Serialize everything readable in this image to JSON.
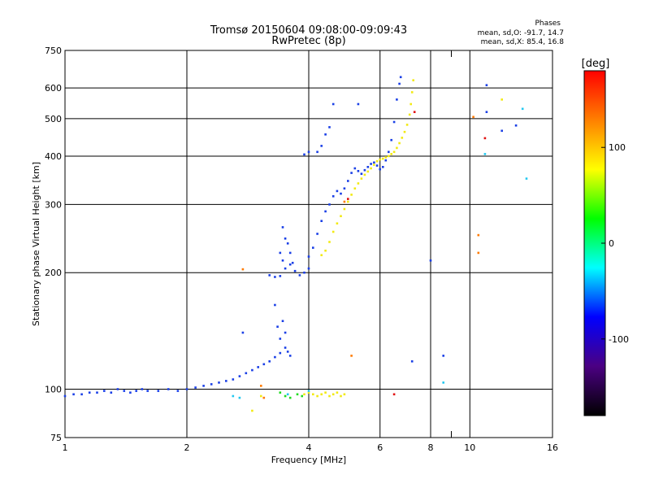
{
  "chart_data": {
    "type": "scatter",
    "title": "Tromsø 20150604 09:08:00-09:09:43",
    "subtitle": "RwPretec (8p)",
    "xlabel": "Frequency [MHz]",
    "ylabel": "Stationary phase Virtual Height [km]",
    "x_scale": "log",
    "y_scale": "log",
    "xlim": [
      1,
      16
    ],
    "ylim": [
      75,
      750
    ],
    "x_ticks": [
      1,
      2,
      4,
      6,
      8,
      10,
      16
    ],
    "x_tick_labels": [
      "1",
      "2",
      "4",
      "6",
      "8",
      "10",
      "16"
    ],
    "x_minor_ticks": [
      9
    ],
    "y_ticks": [
      75,
      100,
      200,
      300,
      400,
      500,
      600,
      750
    ],
    "y_tick_labels": [
      "75",
      "100",
      "200",
      "300",
      "400",
      "500",
      "600",
      "750"
    ],
    "grid": true,
    "legend": {
      "title": "Phases",
      "lines": [
        "mean, sd,O: -91.7, 14.7",
        "mean, sd,X: 85.4, 16.8"
      ],
      "placement": "top-right"
    },
    "colorbar": {
      "title": "[deg]",
      "range": [
        -180,
        180
      ],
      "ticks": [
        100,
        0,
        -100
      ],
      "tick_labels": [
        "100",
        "0",
        "-100"
      ],
      "colors": [
        "#000000",
        "#4b0082",
        "#0000ff",
        "#00ffff",
        "#00ff00",
        "#ffff00",
        "#ff8000",
        "#ff0000"
      ]
    },
    "series": [
      {
        "role": "O-mode",
        "phase_deg": -92,
        "color": "#1a3fe6",
        "points": [
          [
            1.0,
            96
          ],
          [
            1.05,
            97
          ],
          [
            1.1,
            97
          ],
          [
            1.15,
            98
          ],
          [
            1.2,
            98
          ],
          [
            1.25,
            99
          ],
          [
            1.3,
            98
          ],
          [
            1.35,
            100
          ],
          [
            1.4,
            99
          ],
          [
            1.45,
            98
          ],
          [
            1.5,
            99
          ],
          [
            1.55,
            100
          ],
          [
            1.6,
            99
          ],
          [
            1.7,
            99
          ],
          [
            1.8,
            100
          ],
          [
            1.9,
            99
          ],
          [
            2.0,
            100
          ],
          [
            2.1,
            101
          ],
          [
            2.2,
            102
          ],
          [
            2.3,
            103
          ],
          [
            2.4,
            104
          ],
          [
            2.5,
            105
          ],
          [
            2.6,
            106
          ],
          [
            2.7,
            108
          ],
          [
            2.8,
            110
          ],
          [
            2.9,
            112
          ],
          [
            3.0,
            114
          ],
          [
            3.1,
            116
          ],
          [
            3.2,
            118
          ],
          [
            3.3,
            121
          ],
          [
            3.4,
            124
          ],
          [
            3.5,
            128
          ],
          [
            3.3,
            165
          ],
          [
            3.35,
            145
          ],
          [
            3.4,
            135
          ],
          [
            3.45,
            150
          ],
          [
            3.5,
            140
          ],
          [
            3.55,
            125
          ],
          [
            3.6,
            122
          ],
          [
            3.2,
            197
          ],
          [
            3.3,
            195
          ],
          [
            3.4,
            196
          ],
          [
            3.5,
            205
          ],
          [
            3.6,
            210
          ],
          [
            3.7,
            202
          ],
          [
            3.8,
            197
          ],
          [
            3.9,
            200
          ],
          [
            4.0,
            205
          ],
          [
            3.45,
            262
          ],
          [
            3.5,
            245
          ],
          [
            3.55,
            238
          ],
          [
            3.6,
            225
          ],
          [
            3.65,
            212
          ],
          [
            3.4,
            225
          ],
          [
            3.45,
            215
          ],
          [
            4.0,
            220
          ],
          [
            4.1,
            232
          ],
          [
            4.2,
            252
          ],
          [
            4.3,
            272
          ],
          [
            4.4,
            288
          ],
          [
            4.5,
            300
          ],
          [
            4.6,
            315
          ],
          [
            4.7,
            325
          ],
          [
            4.8,
            320
          ],
          [
            4.9,
            330
          ],
          [
            5.0,
            345
          ],
          [
            5.1,
            362
          ],
          [
            5.2,
            372
          ],
          [
            5.3,
            366
          ],
          [
            5.4,
            360
          ],
          [
            5.5,
            368
          ],
          [
            5.6,
            375
          ],
          [
            5.7,
            382
          ],
          [
            5.8,
            385
          ],
          [
            5.9,
            378
          ],
          [
            6.0,
            370
          ],
          [
            6.1,
            375
          ],
          [
            6.2,
            390
          ],
          [
            6.3,
            410
          ],
          [
            6.4,
            440
          ],
          [
            6.5,
            490
          ],
          [
            6.6,
            560
          ],
          [
            6.7,
            615
          ],
          [
            6.75,
            640
          ],
          [
            4.2,
            410
          ],
          [
            4.3,
            425
          ],
          [
            4.4,
            455
          ],
          [
            4.5,
            475
          ],
          [
            4.6,
            545
          ],
          [
            3.9,
            404
          ],
          [
            4.0,
            410
          ],
          [
            5.3,
            545
          ],
          [
            2.75,
            140
          ],
          [
            8.0,
            215
          ],
          [
            7.2,
            118
          ],
          [
            8.6,
            122
          ],
          [
            11.0,
            520
          ],
          [
            12.0,
            465
          ],
          [
            13.0,
            480
          ],
          [
            11.0,
            610
          ]
        ]
      },
      {
        "role": "X-mode",
        "phase_deg": 85,
        "color": "#f2ea12",
        "points": [
          [
            4.3,
            222
          ],
          [
            4.4,
            228
          ],
          [
            4.5,
            240
          ],
          [
            4.6,
            255
          ],
          [
            4.7,
            268
          ],
          [
            4.8,
            280
          ],
          [
            4.9,
            292
          ],
          [
            5.0,
            305
          ],
          [
            5.1,
            318
          ],
          [
            5.2,
            330
          ],
          [
            5.3,
            340
          ],
          [
            5.4,
            350
          ],
          [
            5.5,
            358
          ],
          [
            5.6,
            365
          ],
          [
            5.7,
            372
          ],
          [
            5.8,
            380
          ],
          [
            5.9,
            388
          ],
          [
            6.0,
            392
          ],
          [
            6.1,
            394
          ],
          [
            6.2,
            397
          ],
          [
            6.3,
            400
          ],
          [
            6.4,
            405
          ],
          [
            6.5,
            410
          ],
          [
            6.6,
            420
          ],
          [
            6.7,
            432
          ],
          [
            6.8,
            446
          ],
          [
            6.9,
            462
          ],
          [
            7.0,
            482
          ],
          [
            7.1,
            512
          ],
          [
            7.15,
            545
          ],
          [
            7.2,
            585
          ],
          [
            7.25,
            628
          ],
          [
            3.9,
            97
          ],
          [
            4.0,
            98
          ],
          [
            4.1,
            97
          ],
          [
            4.2,
            96
          ],
          [
            4.3,
            97
          ],
          [
            4.4,
            98
          ],
          [
            4.5,
            96
          ],
          [
            4.6,
            97
          ],
          [
            4.7,
            98
          ],
          [
            4.8,
            96
          ],
          [
            4.9,
            97
          ],
          [
            2.9,
            88
          ],
          [
            3.05,
            96
          ],
          [
            12.0,
            560
          ]
        ]
      },
      {
        "role": "mixed",
        "phase_deg": 130,
        "color": "#ff7a00",
        "points": [
          [
            2.75,
            204
          ],
          [
            3.05,
            102
          ],
          [
            3.1,
            95
          ],
          [
            4.9,
            305
          ],
          [
            5.1,
            122
          ],
          [
            10.2,
            505
          ],
          [
            10.5,
            250
          ],
          [
            10.5,
            225
          ]
        ]
      },
      {
        "role": "mixed",
        "phase_deg": 170,
        "color": "#e01010",
        "points": [
          [
            6.5,
            97
          ],
          [
            5.0,
            310
          ],
          [
            10.9,
            445
          ],
          [
            7.3,
            520
          ]
        ]
      },
      {
        "role": "mixed",
        "phase_deg": 10,
        "color": "#1fdc1f",
        "points": [
          [
            3.5,
            96
          ],
          [
            3.6,
            95
          ],
          [
            3.75,
            97
          ],
          [
            3.85,
            96
          ],
          [
            3.4,
            98
          ]
        ]
      },
      {
        "role": "mixed",
        "phase_deg": -50,
        "color": "#22c8f0",
        "points": [
          [
            2.6,
            96
          ],
          [
            2.7,
            95
          ],
          [
            3.55,
            97
          ],
          [
            4.0,
            99
          ],
          [
            8.6,
            104
          ],
          [
            10.9,
            405
          ],
          [
            13.5,
            530
          ],
          [
            13.8,
            350
          ]
        ]
      }
    ]
  }
}
